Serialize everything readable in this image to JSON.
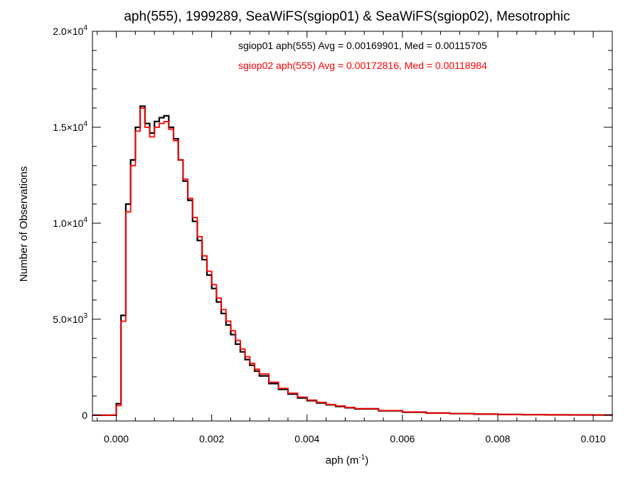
{
  "chart_data": {
    "type": "line",
    "title": "aph(555), 1999289, SeaWiFS(sgiop01) & SeaWiFS(sgiop02), Mesotrophic",
    "xlabel_base": "aph (m",
    "xlabel_sup": "-1",
    "xlabel_close": ")",
    "ylabel": "Number of Observations",
    "xlim": [
      -0.0005,
      0.0104
    ],
    "ylim": [
      -300,
      20000
    ],
    "grid": false,
    "x_ticks": [
      {
        "value": 0.0,
        "label": "0.000"
      },
      {
        "value": 0.002,
        "label": "0.002"
      },
      {
        "value": 0.004,
        "label": "0.004"
      },
      {
        "value": 0.006,
        "label": "0.006"
      },
      {
        "value": 0.008,
        "label": "0.008"
      },
      {
        "value": 0.01,
        "label": "0.010"
      }
    ],
    "y_ticks": [
      {
        "value": 0,
        "mant": "0",
        "exp": ""
      },
      {
        "value": 5000,
        "mant": "5.0×10",
        "exp": "3"
      },
      {
        "value": 10000,
        "mant": "1.0×10",
        "exp": "4"
      },
      {
        "value": 15000,
        "mant": "1.5×10",
        "exp": "4"
      },
      {
        "value": 20000,
        "mant": "2.0×10",
        "exp": "4"
      }
    ],
    "annotations": [
      {
        "text": "sgiop01 aph(555) Avg = 0.00169901, Med = 0.00115705",
        "color": "#000000"
      },
      {
        "text": "sgiop02 aph(555) Avg = 0.00172816, Med = 0.00118984",
        "color": "#ff0000"
      }
    ],
    "series": [
      {
        "color": "#000000",
        "points": [
          [
            -0.0005,
            0
          ],
          [
            -0.0001,
            0
          ],
          [
            0.0,
            600
          ],
          [
            0.0001,
            5200
          ],
          [
            0.0002,
            11000
          ],
          [
            0.0003,
            13300
          ],
          [
            0.0004,
            15000
          ],
          [
            0.0005,
            16100
          ],
          [
            0.0006,
            15200
          ],
          [
            0.0007,
            14700
          ],
          [
            0.0008,
            15300
          ],
          [
            0.0009,
            15500
          ],
          [
            0.001,
            15600
          ],
          [
            0.0011,
            15000
          ],
          [
            0.0012,
            14400
          ],
          [
            0.0013,
            13300
          ],
          [
            0.0014,
            12200
          ],
          [
            0.0015,
            11200
          ],
          [
            0.0016,
            10100
          ],
          [
            0.0017,
            9100
          ],
          [
            0.0018,
            8100
          ],
          [
            0.0019,
            7300
          ],
          [
            0.002,
            6600
          ],
          [
            0.0021,
            5900
          ],
          [
            0.0022,
            5300
          ],
          [
            0.0023,
            4700
          ],
          [
            0.0024,
            4200
          ],
          [
            0.0025,
            3700
          ],
          [
            0.0026,
            3300
          ],
          [
            0.0027,
            2900
          ],
          [
            0.0028,
            2600
          ],
          [
            0.0029,
            2300
          ],
          [
            0.003,
            2050
          ],
          [
            0.0032,
            1650
          ],
          [
            0.0034,
            1350
          ],
          [
            0.0036,
            1100
          ],
          [
            0.0038,
            900
          ],
          [
            0.004,
            760
          ],
          [
            0.0042,
            640
          ],
          [
            0.0044,
            540
          ],
          [
            0.0046,
            460
          ],
          [
            0.0048,
            390
          ],
          [
            0.005,
            330
          ],
          [
            0.0055,
            230
          ],
          [
            0.006,
            160
          ],
          [
            0.0065,
            110
          ],
          [
            0.007,
            80
          ],
          [
            0.0075,
            55
          ],
          [
            0.008,
            40
          ],
          [
            0.0085,
            28
          ],
          [
            0.009,
            20
          ],
          [
            0.0095,
            14
          ],
          [
            0.01,
            10
          ],
          [
            0.0104,
            8
          ]
        ]
      },
      {
        "color": "#ff0000",
        "points": [
          [
            -0.0005,
            0
          ],
          [
            -0.0001,
            0
          ],
          [
            0.0,
            500
          ],
          [
            0.0001,
            4900
          ],
          [
            0.0002,
            10600
          ],
          [
            0.0003,
            13000
          ],
          [
            0.0004,
            14800
          ],
          [
            0.0005,
            16000
          ],
          [
            0.0006,
            15000
          ],
          [
            0.0007,
            14500
          ],
          [
            0.0008,
            15000
          ],
          [
            0.0009,
            15200
          ],
          [
            0.001,
            15300
          ],
          [
            0.0011,
            14900
          ],
          [
            0.0012,
            14300
          ],
          [
            0.0013,
            13300
          ],
          [
            0.0014,
            12300
          ],
          [
            0.0015,
            11300
          ],
          [
            0.0016,
            10300
          ],
          [
            0.0017,
            9300
          ],
          [
            0.0018,
            8300
          ],
          [
            0.0019,
            7500
          ],
          [
            0.002,
            6800
          ],
          [
            0.0021,
            6100
          ],
          [
            0.0022,
            5500
          ],
          [
            0.0023,
            4900
          ],
          [
            0.0024,
            4400
          ],
          [
            0.0025,
            3900
          ],
          [
            0.0026,
            3450
          ],
          [
            0.0027,
            3050
          ],
          [
            0.0028,
            2700
          ],
          [
            0.0029,
            2400
          ],
          [
            0.003,
            2150
          ],
          [
            0.0032,
            1720
          ],
          [
            0.0034,
            1400
          ],
          [
            0.0036,
            1150
          ],
          [
            0.0038,
            940
          ],
          [
            0.004,
            790
          ],
          [
            0.0042,
            670
          ],
          [
            0.0044,
            560
          ],
          [
            0.0046,
            480
          ],
          [
            0.0048,
            405
          ],
          [
            0.005,
            345
          ],
          [
            0.0055,
            240
          ],
          [
            0.006,
            170
          ],
          [
            0.0065,
            115
          ],
          [
            0.007,
            85
          ],
          [
            0.0075,
            58
          ],
          [
            0.008,
            42
          ],
          [
            0.0085,
            30
          ],
          [
            0.009,
            21
          ],
          [
            0.0095,
            15
          ],
          [
            0.01,
            11
          ],
          [
            0.0104,
            8
          ]
        ]
      }
    ]
  }
}
